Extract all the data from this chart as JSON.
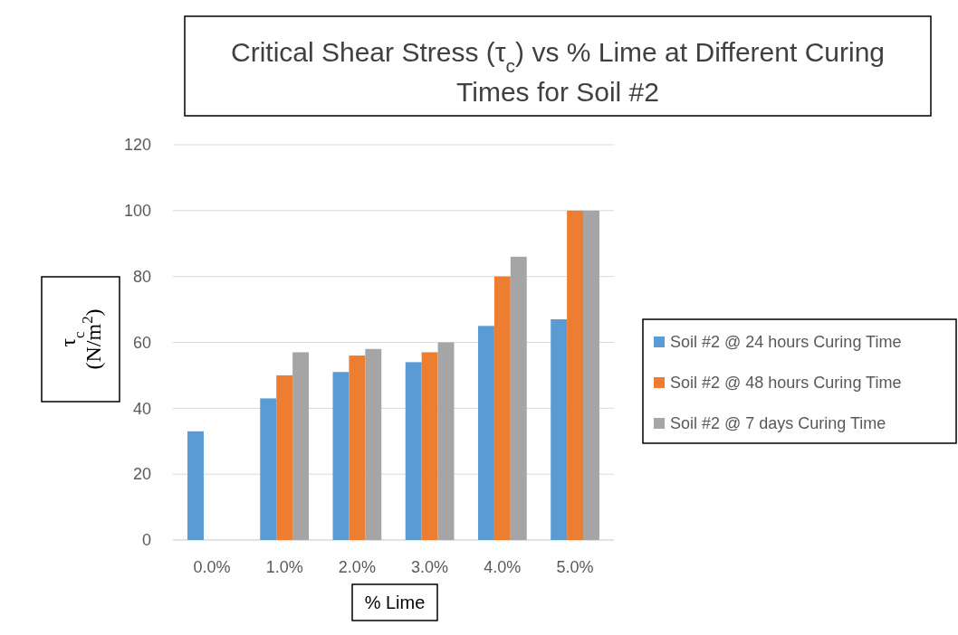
{
  "chart_data": {
    "type": "bar",
    "title": "Critical Shear Stress (τ$_{c}$)  vs % Lime at Different Curing Times for Soil #2",
    "xlabel": "% Lime",
    "ylabel": "τ$_{c}$ (N/m$^{2}$)",
    "categories": [
      "0.0%",
      "1.0%",
      "2.0%",
      "3.0%",
      "4.0%",
      "5.0%"
    ],
    "series": [
      {
        "name": "Soil #2 @ 24 hours Curing Time",
        "color": "#5b9bd5",
        "values": [
          33,
          43,
          51,
          54,
          65,
          67
        ]
      },
      {
        "name": "Soil #2 @ 48 hours Curing Time",
        "color": "#ed7d31",
        "values": [
          null,
          50,
          56,
          57,
          80,
          100
        ]
      },
      {
        "name": "Soil #2 @ 7 days Curing Time",
        "color": "#a5a5a5",
        "values": [
          null,
          57,
          58,
          60,
          86,
          100
        ]
      }
    ],
    "ylim": [
      0,
      120
    ],
    "yticks": [
      0,
      20,
      40,
      60,
      80,
      100,
      120
    ],
    "grid": "y",
    "legend": "right"
  }
}
